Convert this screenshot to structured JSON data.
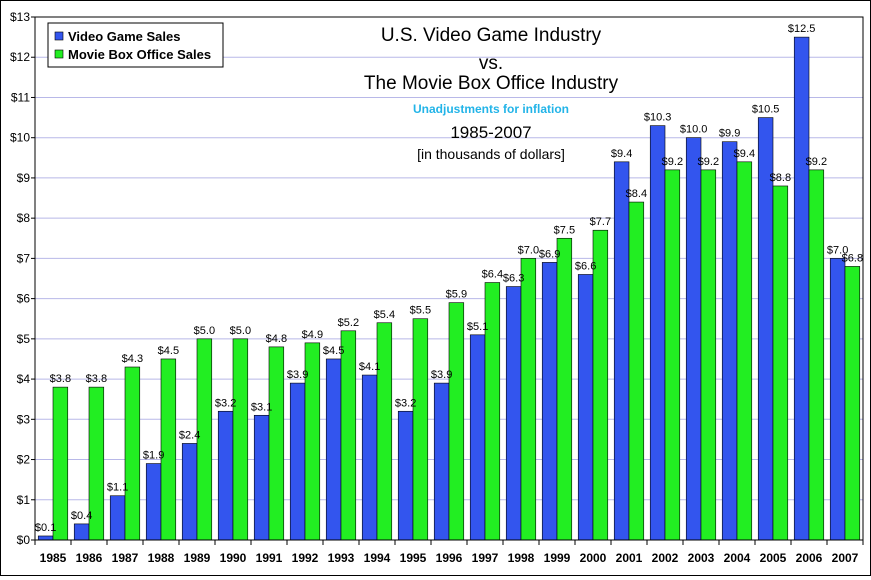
{
  "chart_data": {
    "type": "bar",
    "title": {
      "line1": "U.S. Video Game Industry",
      "line2": "vs.",
      "line3": "The Movie Box Office Industry"
    },
    "subtitle": "Unadjustments for inflation",
    "years_label": "1985-2007",
    "units_label": "[in thousands of dollars]",
    "categories": [
      "1985",
      "1986",
      "1987",
      "1988",
      "1989",
      "1990",
      "1991",
      "1992",
      "1993",
      "1994",
      "1995",
      "1996",
      "1997",
      "1998",
      "1999",
      "2000",
      "2001",
      "2002",
      "2003",
      "2004",
      "2005",
      "2006",
      "2007"
    ],
    "series": [
      {
        "name": "Video Game Sales",
        "color": "#3355ee",
        "values": [
          0.1,
          0.4,
          1.1,
          1.9,
          2.4,
          3.2,
          3.1,
          3.9,
          4.5,
          4.1,
          3.2,
          3.9,
          5.1,
          6.3,
          6.9,
          6.6,
          9.4,
          10.3,
          10.0,
          9.9,
          10.5,
          12.5,
          7.0
        ],
        "labels": [
          "$0.1",
          "$0.4",
          "$1.1",
          "$1.9",
          "$2.4",
          "$3.2",
          "$3.1",
          "$3.9",
          "$4.5",
          "$4.1",
          "$3.2",
          "$3.9",
          "$5.1",
          "$6.3",
          "$6.9",
          "$6.6",
          "$9.4",
          "$10.3",
          "$10.0",
          "$9.9",
          "$10.5",
          "$12.5",
          "$7.0"
        ]
      },
      {
        "name": "Movie Box Office Sales",
        "color": "#22ee22",
        "values": [
          3.8,
          3.8,
          4.3,
          4.5,
          5.0,
          5.0,
          4.8,
          4.9,
          5.2,
          5.4,
          5.5,
          5.9,
          6.4,
          7.0,
          7.5,
          7.7,
          8.4,
          9.2,
          9.2,
          9.4,
          8.8,
          9.2,
          6.8
        ],
        "labels": [
          "$3.8",
          "$3.8",
          "$4.3",
          "$4.5",
          "$5.0",
          "$5.0",
          "$4.8",
          "$4.9",
          "$5.2",
          "$5.4",
          "$5.5",
          "$5.9",
          "$6.4",
          "$7.0",
          "$7.5",
          "$7.7",
          "$8.4",
          "$9.2",
          "$9.2",
          "$9.4",
          "$8.8",
          "$9.2",
          "$6.8"
        ]
      }
    ],
    "yticks": [
      0,
      1,
      2,
      3,
      4,
      5,
      6,
      7,
      8,
      9,
      10,
      11,
      12,
      13
    ],
    "ytick_labels": [
      "$0",
      "$1",
      "$2",
      "$3",
      "$4",
      "$5",
      "$6",
      "$7",
      "$8",
      "$9",
      "$10",
      "$11",
      "$12",
      "$13"
    ],
    "ylim": [
      0,
      13
    ],
    "grid": true,
    "legend_position": "top-left"
  }
}
